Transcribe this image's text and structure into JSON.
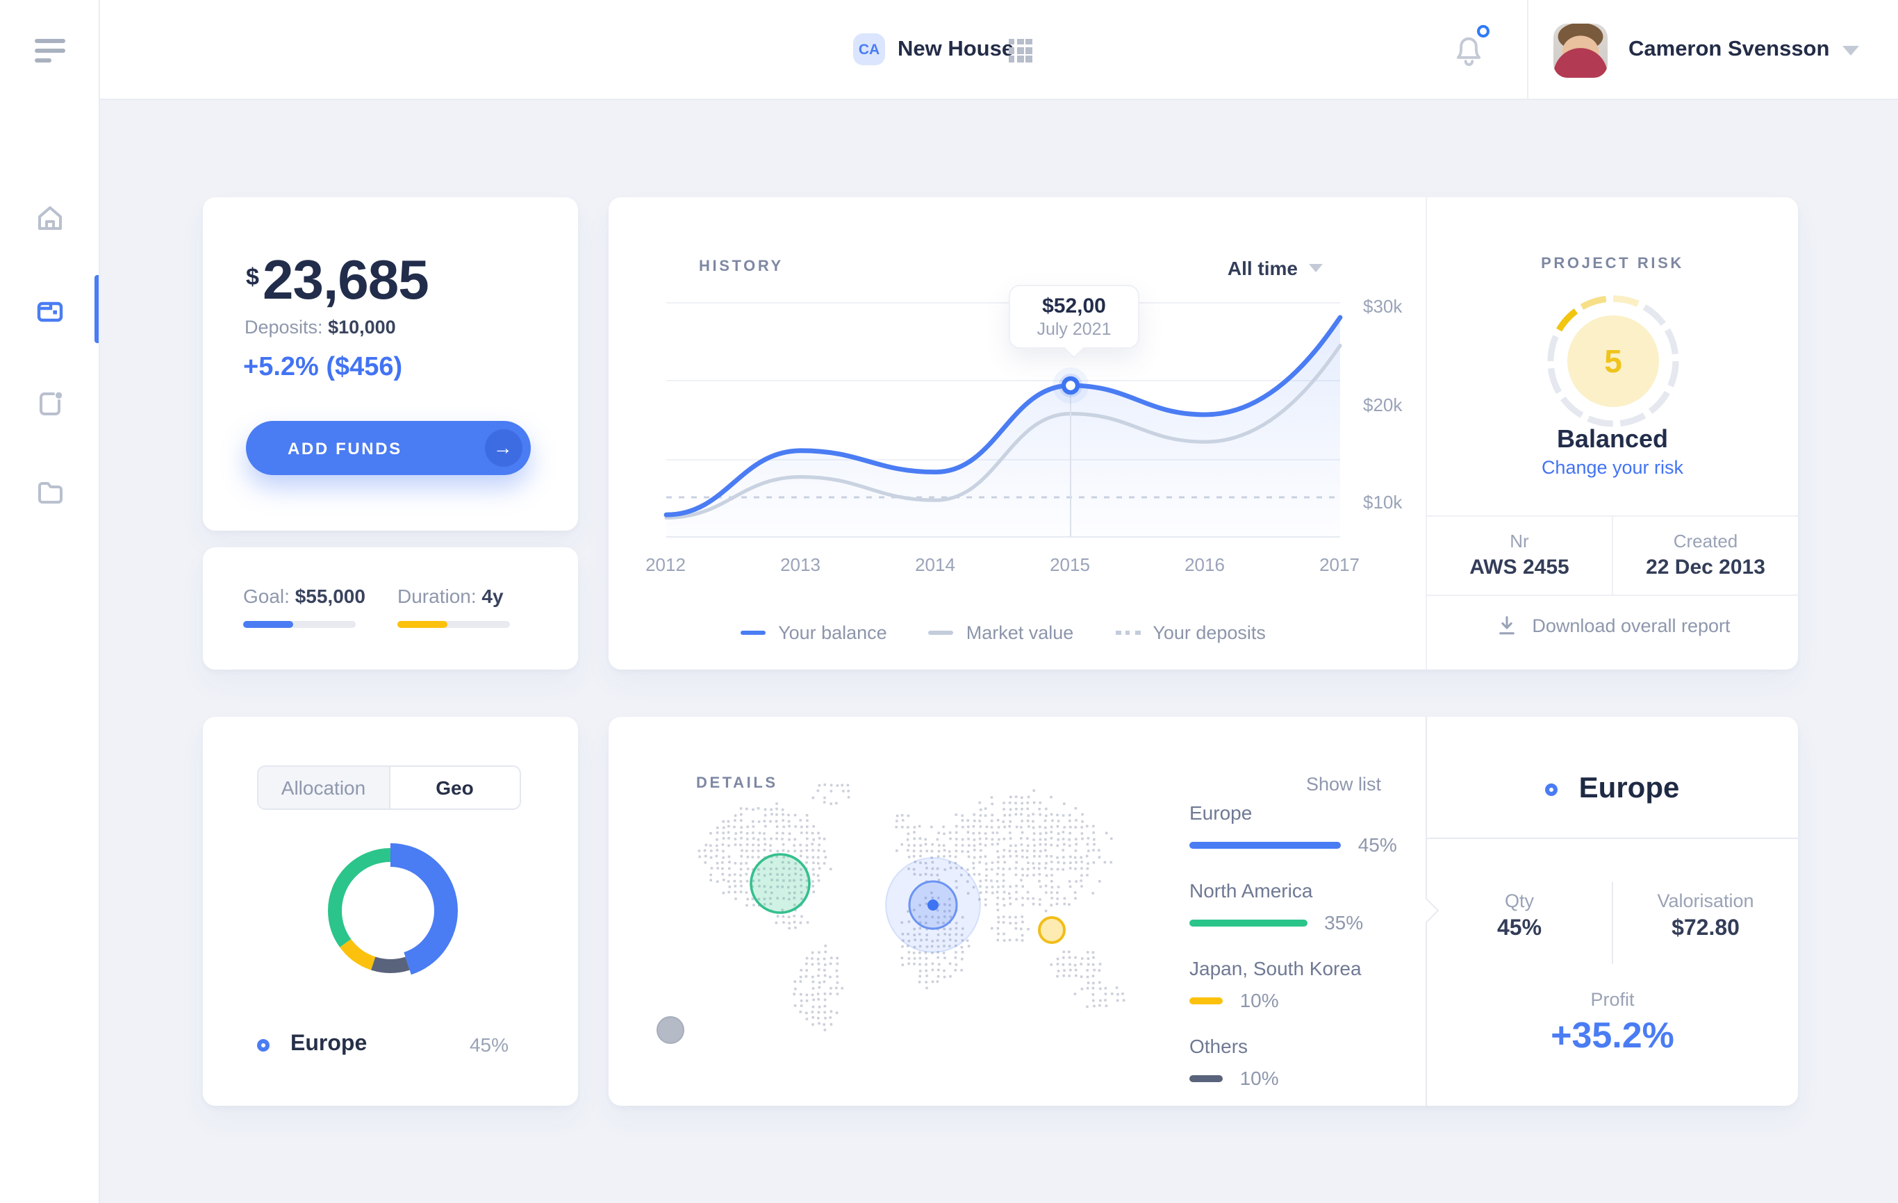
{
  "header": {
    "workspace_badge": "CA",
    "workspace_name": "New House",
    "user_name": "Cameron Svensson"
  },
  "sidebar": {
    "items": [
      {
        "icon": "home-icon"
      },
      {
        "icon": "wallet-icon",
        "active": true
      },
      {
        "icon": "note-icon"
      },
      {
        "icon": "folder-icon"
      }
    ]
  },
  "balance": {
    "currency": "$",
    "amount": "23,685",
    "deposits_label": "Deposits:",
    "deposits_value": "$10,000",
    "change": "+5.2% ($456)",
    "add_funds": "ADD FUNDS",
    "arrow": "→"
  },
  "goal": {
    "goal_label": "Goal:",
    "goal_value": "$55,000",
    "goal_progress_pct": 45,
    "duration_label": "Duration:",
    "duration_value": "4y",
    "duration_progress_pct": 45
  },
  "history": {
    "title": "HISTORY",
    "range": "All time",
    "tooltip_value": "$52,00",
    "tooltip_date": "July 2021",
    "y_ticks": [
      "$30k",
      "$20k",
      "$10k"
    ],
    "x_ticks": [
      "2012",
      "2013",
      "2014",
      "2015",
      "2016",
      "2017"
    ],
    "legend": [
      {
        "label": "Your balance"
      },
      {
        "label": "Market value"
      },
      {
        "label": "Your deposits"
      }
    ]
  },
  "risk": {
    "title": "PROJECT RISK",
    "score": "5",
    "level": "Balanced",
    "link": "Change your risk",
    "nr_label": "Nr",
    "nr_value": "AWS 2455",
    "created_label": "Created",
    "created_value": "22 Dec 2013",
    "download_label": "Download overall report"
  },
  "allocation": {
    "tabs": [
      {
        "label": "Allocation",
        "active": false
      },
      {
        "label": "Geo",
        "active": true
      }
    ],
    "selected_label": "Europe",
    "selected_value": "45%"
  },
  "details": {
    "title": "DETAILS",
    "show_list": "Show list",
    "regions": [
      {
        "name": "Europe",
        "pct_label": "45%",
        "value": 45,
        "color": "#4A7CF3"
      },
      {
        "name": "North America",
        "pct_label": "35%",
        "value": 35,
        "color": "#2BC48A"
      },
      {
        "name": "Japan, South Korea",
        "pct_label": "10%",
        "value": 10,
        "color": "#FBC10D"
      },
      {
        "name": "Others",
        "pct_label": "10%",
        "value": 10,
        "color": "#59637B"
      }
    ]
  },
  "europe": {
    "title": "Europe",
    "qty_label": "Qty",
    "qty_value": "45%",
    "val_label": "Valorisation",
    "val_value": "$72.80",
    "profit_label": "Profit",
    "profit_value": "+35.2%"
  },
  "gauge": {
    "value": 5,
    "segments": 12,
    "inner_bg": "#FBF0C8",
    "active_color": "#F2C50F"
  },
  "chart_data": [
    {
      "type": "line",
      "title": "HISTORY",
      "x": [
        2012,
        2013,
        2014,
        2015,
        2016,
        2017
      ],
      "unit": "$k",
      "ylim": [
        5,
        30
      ],
      "y_ticks": [
        "$30k",
        "$20k",
        "$10k"
      ],
      "grid": true,
      "legend_position": "bottom",
      "series": [
        {
          "name": "Your balance",
          "color": "#4A7CF3",
          "style": "solid",
          "values": [
            8.2,
            14.8,
            12.6,
            21.5,
            18.5,
            28.5
          ]
        },
        {
          "name": "Market value",
          "color": "#C9D2E0",
          "style": "solid",
          "values": [
            7.9,
            12.1,
            9.7,
            18.6,
            15.7,
            25.6
          ]
        },
        {
          "name": "Your deposits",
          "color": "#C9D2E0",
          "style": "dashed",
          "values": [
            10,
            10,
            10,
            10,
            10,
            10
          ]
        }
      ],
      "tooltip": {
        "x": 2015,
        "value": "$52,00",
        "date": "July 2021"
      }
    },
    {
      "type": "pie",
      "title": "Geo allocation donut",
      "categories": [
        "Europe",
        "Others",
        "Japan, South Korea",
        "North America"
      ],
      "values": [
        45,
        10,
        10,
        35
      ],
      "colors": [
        "#4A7CF3",
        "#59637B",
        "#FBC10D",
        "#2BC48A"
      ]
    },
    {
      "type": "bar",
      "title": "Regions share",
      "unit": "%",
      "categories": [
        "Europe",
        "North America",
        "Japan, South Korea",
        "Others"
      ],
      "values": [
        45,
        35,
        10,
        10
      ]
    }
  ],
  "colors": {
    "accent_blue": "#4A7CF3",
    "green": "#2BC48A",
    "yellow": "#FBC10D",
    "slate": "#59637B",
    "text_dark": "#222D4B",
    "text_gray": "#8E97AC",
    "bg": "#F0F2F8"
  }
}
